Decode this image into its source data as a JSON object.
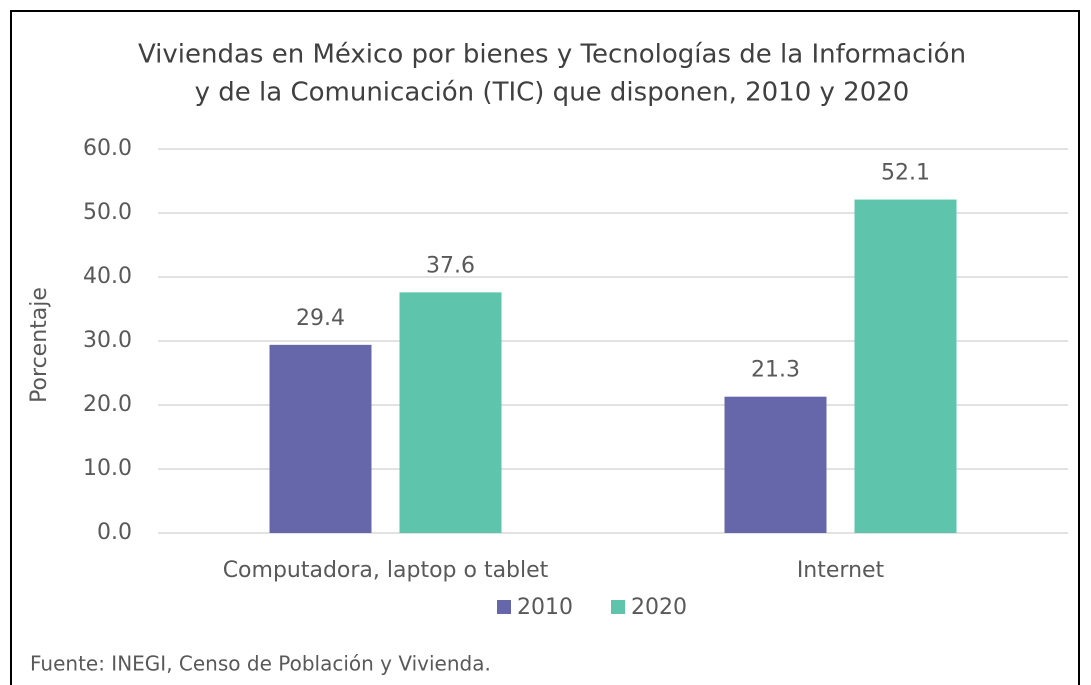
{
  "chart_data": {
    "type": "bar",
    "title": [
      "Viviendas en México por bienes y Tecnologías de la Información",
      "y de la Comunicación (TIC) que disponen, 2010 y 2020"
    ],
    "y_label": "Porcentaje",
    "categories": [
      "Computadora, laptop o tablet",
      "Internet"
    ],
    "series": [
      {
        "name": "2010",
        "color": "#6667ab",
        "values": [
          29.4,
          21.3
        ]
      },
      {
        "name": "2020",
        "color": "#5ec4ac",
        "values": [
          37.6,
          52.1
        ]
      }
    ],
    "ylim": [
      0,
      60
    ],
    "yticks": [
      {
        "value": 0,
        "label": "0.0"
      },
      {
        "value": 10,
        "label": "10.0"
      },
      {
        "value": 20,
        "label": "20.0"
      },
      {
        "value": 30,
        "label": "30.0"
      },
      {
        "value": 40,
        "label": "40.0"
      },
      {
        "value": 50,
        "label": "50.0"
      },
      {
        "value": 60,
        "label": "60.0"
      }
    ],
    "grid": true,
    "legend": "bottom",
    "source": "Fuente: INEGI, Censo de Población y Vivienda."
  }
}
